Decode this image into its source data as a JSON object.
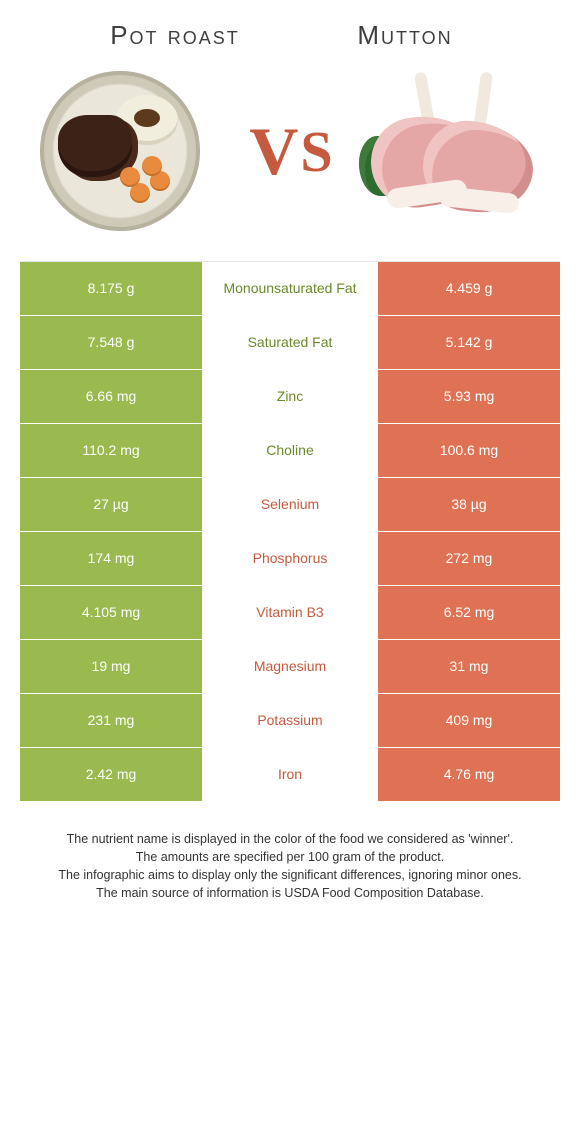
{
  "header": {
    "left_title": "Pot roast",
    "right_title": "Mutton",
    "vs": "VS"
  },
  "colors": {
    "left": "#9ab94e",
    "right": "#df7254",
    "left_text": "#6a8a2a",
    "right_text": "#c65a3f",
    "row_border": "#ffffff"
  },
  "rows": [
    {
      "left": "8.175 g",
      "label": "Monounsaturated Fat",
      "right": "4.459 g",
      "winner": "left"
    },
    {
      "left": "7.548 g",
      "label": "Saturated Fat",
      "right": "5.142 g",
      "winner": "left"
    },
    {
      "left": "6.66 mg",
      "label": "Zinc",
      "right": "5.93 mg",
      "winner": "left"
    },
    {
      "left": "110.2 mg",
      "label": "Choline",
      "right": "100.6 mg",
      "winner": "left"
    },
    {
      "left": "27 µg",
      "label": "Selenium",
      "right": "38 µg",
      "winner": "right"
    },
    {
      "left": "174 mg",
      "label": "Phosphorus",
      "right": "272 mg",
      "winner": "right"
    },
    {
      "left": "4.105 mg",
      "label": "Vitamin B3",
      "right": "6.52 mg",
      "winner": "right"
    },
    {
      "left": "19 mg",
      "label": "Magnesium",
      "right": "31 mg",
      "winner": "right"
    },
    {
      "left": "231 mg",
      "label": "Potassium",
      "right": "409 mg",
      "winner": "right"
    },
    {
      "left": "2.42 mg",
      "label": "Iron",
      "right": "4.76 mg",
      "winner": "right"
    }
  ],
  "footer": [
    "The nutrient name is displayed in the color of the food we considered as 'winner'.",
    "The amounts are specified per 100 gram of the product.",
    "The infographic aims to display only the significant differences, ignoring minor ones.",
    "The main source of information is USDA Food Composition Database."
  ]
}
